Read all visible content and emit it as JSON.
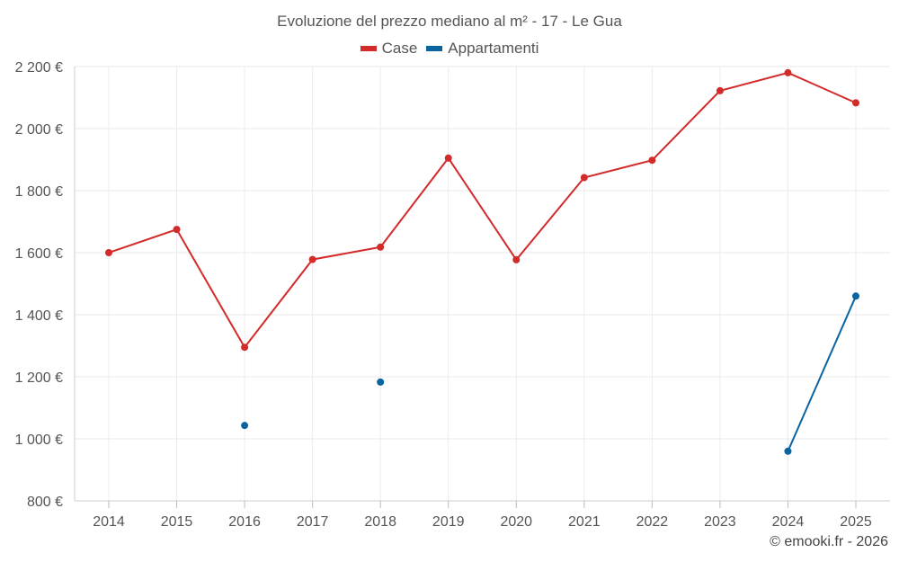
{
  "chart_data": {
    "type": "line",
    "title": "Evoluzione del prezzo mediano al m² - 17 - Le Gua",
    "categories": [
      "2014",
      "2015",
      "2016",
      "2017",
      "2018",
      "2019",
      "2020",
      "2021",
      "2022",
      "2023",
      "2024",
      "2025"
    ],
    "ylim": [
      800,
      2200
    ],
    "yticks": [
      800,
      1000,
      1200,
      1400,
      1600,
      1800,
      2000,
      2200
    ],
    "ytick_labels": [
      "800 €",
      "1 000 €",
      "1 200 €",
      "1 400 €",
      "1 600 €",
      "1 800 €",
      "2 000 €",
      "2 200 €"
    ],
    "series": [
      {
        "name": "Case",
        "color": "#d32a2a",
        "values": [
          1600,
          1675,
          1295,
          1578,
          1618,
          1905,
          1577,
          1842,
          1898,
          2122,
          2180,
          2083
        ]
      },
      {
        "name": "Appartamenti",
        "color": "#0a64a0",
        "values": [
          null,
          null,
          1043,
          null,
          1183,
          null,
          null,
          null,
          null,
          null,
          960,
          1460
        ]
      }
    ],
    "grid": true,
    "legend_position": "top-center"
  },
  "credit": "© emooki.fr - 2026"
}
